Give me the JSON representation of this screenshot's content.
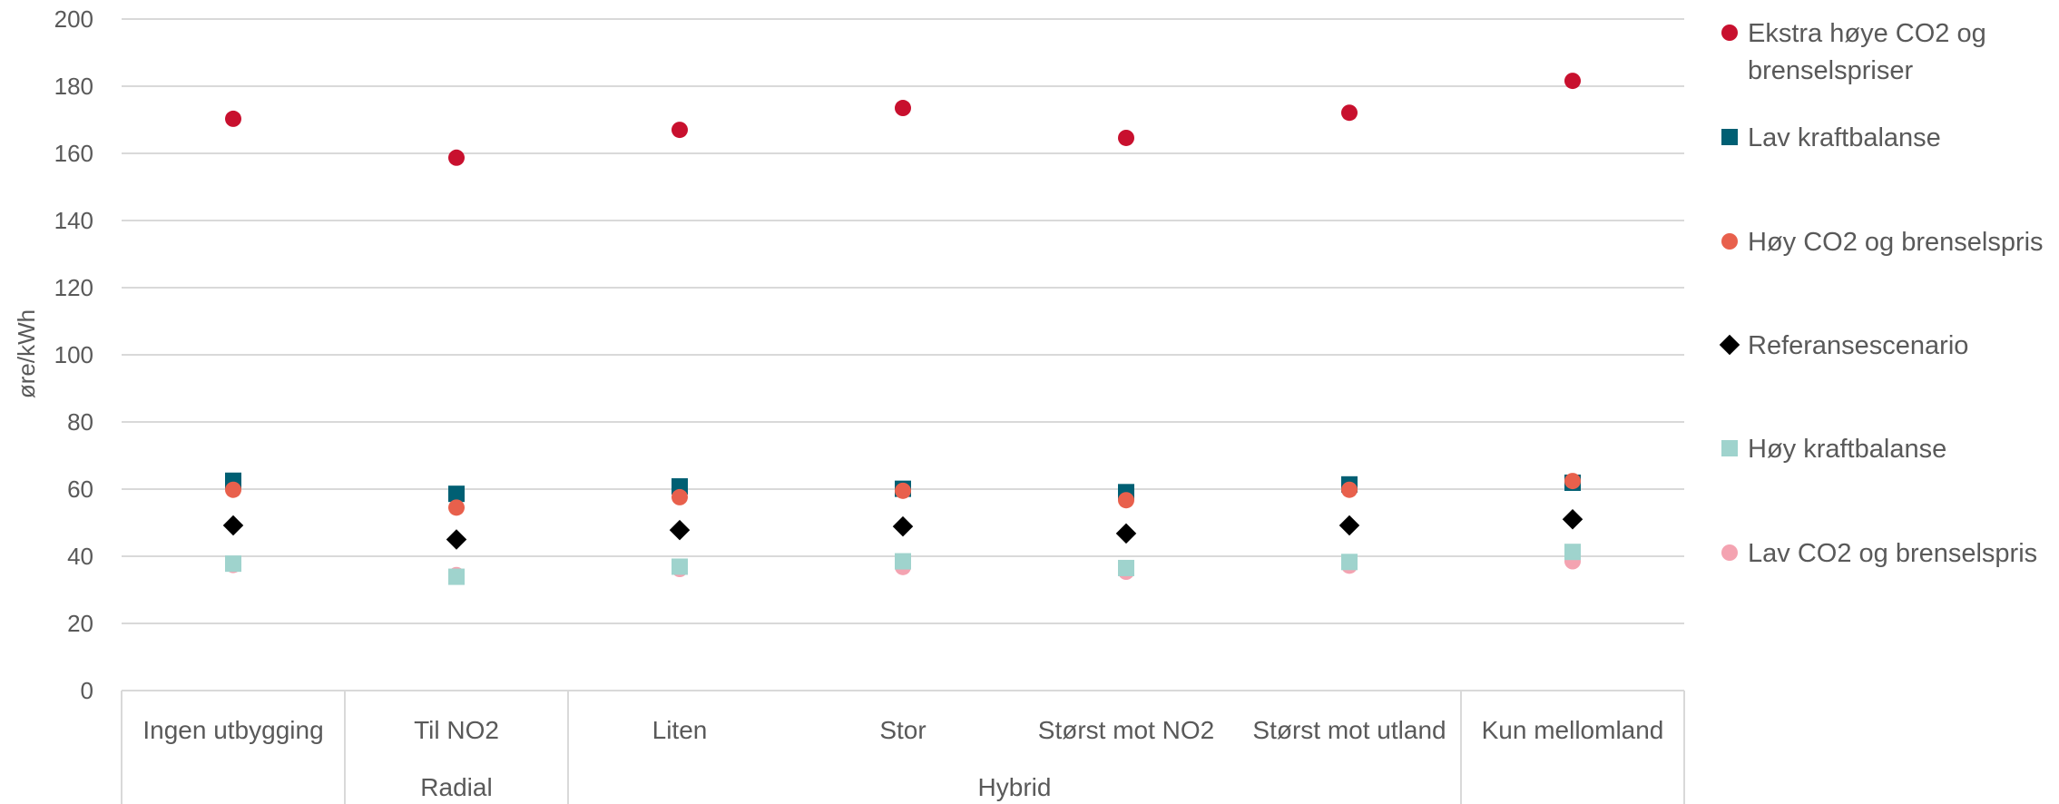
{
  "chart_data": {
    "type": "scatter",
    "ylabel": "øre/kWh",
    "ylim": [
      0,
      200
    ],
    "yticks": [
      0,
      20,
      40,
      60,
      80,
      100,
      120,
      140,
      160,
      180,
      200
    ],
    "categories": [
      "Ingen utbygging",
      "Til NO2",
      "Liten",
      "Stor",
      "Størst mot NO2",
      "Størst mot utland",
      "Kun mellomland"
    ],
    "groups": [
      {
        "label": "",
        "span": [
          0,
          0
        ]
      },
      {
        "label": "Radial",
        "span": [
          1,
          1
        ]
      },
      {
        "label": "Hybrid",
        "span": [
          2,
          5
        ]
      },
      {
        "label": "",
        "span": [
          6,
          6
        ]
      }
    ],
    "grid": true,
    "legend_position": "right",
    "series": [
      {
        "name": "Ekstra høye CO2 og brenselspriser",
        "marker": "circle",
        "color": "#C8102E",
        "values": [
          170.3,
          158.7,
          167.0,
          173.5,
          164.6,
          172.1,
          181.6
        ]
      },
      {
        "name": "Lav kraftbalanse",
        "marker": "square",
        "color": "#005F73",
        "values": [
          62.5,
          58.6,
          60.8,
          60.1,
          59.1,
          61.4,
          61.9
        ]
      },
      {
        "name": "Høy CO2 og brenselspris",
        "marker": "circle",
        "color": "#E8604C",
        "values": [
          59.8,
          54.5,
          57.6,
          59.5,
          56.7,
          59.8,
          62.4
        ]
      },
      {
        "name": "Referansescenario",
        "marker": "diamond",
        "color": "#000000",
        "values": [
          49.2,
          45.0,
          47.8,
          48.9,
          46.8,
          49.2,
          51.0
        ]
      },
      {
        "name": "Høy kraftbalanse",
        "marker": "square",
        "color": "#9FD3CD",
        "values": [
          37.8,
          33.9,
          36.9,
          38.5,
          36.5,
          38.3,
          41.3
        ]
      },
      {
        "name": "Lav CO2 og brenselspris",
        "marker": "circle",
        "color": "#F4A3B1",
        "values": [
          37.4,
          34.4,
          36.2,
          36.8,
          35.4,
          37.2,
          38.5
        ]
      }
    ],
    "legend_lines": [
      [
        "Ekstra høye CO2 og",
        "brenselspriser"
      ],
      [
        "Lav kraftbalanse"
      ],
      [
        "Høy CO2 og brenselspris"
      ],
      [
        "Referansescenario"
      ],
      [
        "Høy kraftbalanse"
      ],
      [
        "Lav CO2 og brenselspris"
      ]
    ]
  }
}
